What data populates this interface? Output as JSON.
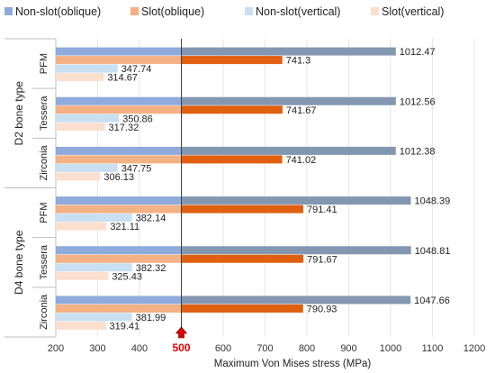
{
  "chart_data": {
    "type": "bar",
    "orientation": "horizontal",
    "xlabel": "Maximum Von Mises stress (MPa)",
    "xlim": [
      200,
      1200
    ],
    "xticks": [
      200,
      300,
      400,
      500,
      600,
      700,
      800,
      900,
      1000,
      1100,
      1200
    ],
    "highlight_tick": 500,
    "reference_line": 500,
    "legend_position": "top",
    "grid": true,
    "groups": [
      {
        "name": "D2 bone type",
        "categories": [
          {
            "name": "PFM",
            "values": [
              1012.47,
              741.3,
              347.74,
              314.67
            ],
            "labels": [
              "1012.47",
              "741.3",
              "347.74",
              "314.67"
            ]
          },
          {
            "name": "Tessera",
            "values": [
              1012.56,
              741.67,
              350.86,
              317.32
            ],
            "labels": [
              "1012.56",
              "741.67",
              "350.86",
              "317.32"
            ]
          },
          {
            "name": "Zirconia",
            "values": [
              1012.38,
              741.02,
              347.75,
              306.13
            ],
            "labels": [
              "1012.38",
              "741.02",
              "347.75",
              "306.13"
            ]
          }
        ]
      },
      {
        "name": "D4 bone type",
        "categories": [
          {
            "name": "PFM",
            "values": [
              1048.39,
              791.41,
              382.14,
              321.11
            ],
            "labels": [
              "1048.39",
              "791.41",
              "382.14",
              "321.11"
            ]
          },
          {
            "name": "Tessera",
            "values": [
              1048.81,
              791.67,
              382.32,
              325.43
            ],
            "labels": [
              "1048.81",
              "791.67",
              "382.32",
              "325.43"
            ]
          },
          {
            "name": "Zirconia",
            "values": [
              1047.66,
              790.93,
              381.99,
              319.41
            ],
            "labels": [
              "1047.66",
              "790.93",
              "381.99",
              "319.41"
            ]
          }
        ]
      }
    ],
    "series": [
      {
        "name": "Non-slot(oblique)",
        "color": "#8faadc",
        "color_right": "#8497b0"
      },
      {
        "name": "Slot(oblique)",
        "color": "#f4b183",
        "color_right": "#e0600f"
      },
      {
        "name": "Non-slot(vertical)",
        "color": "#c9e0f2",
        "color_right": "#c9e0f2"
      },
      {
        "name": "Slot(vertical)",
        "color": "#fbe0d0",
        "color_right": "#fbe0d0"
      }
    ]
  }
}
